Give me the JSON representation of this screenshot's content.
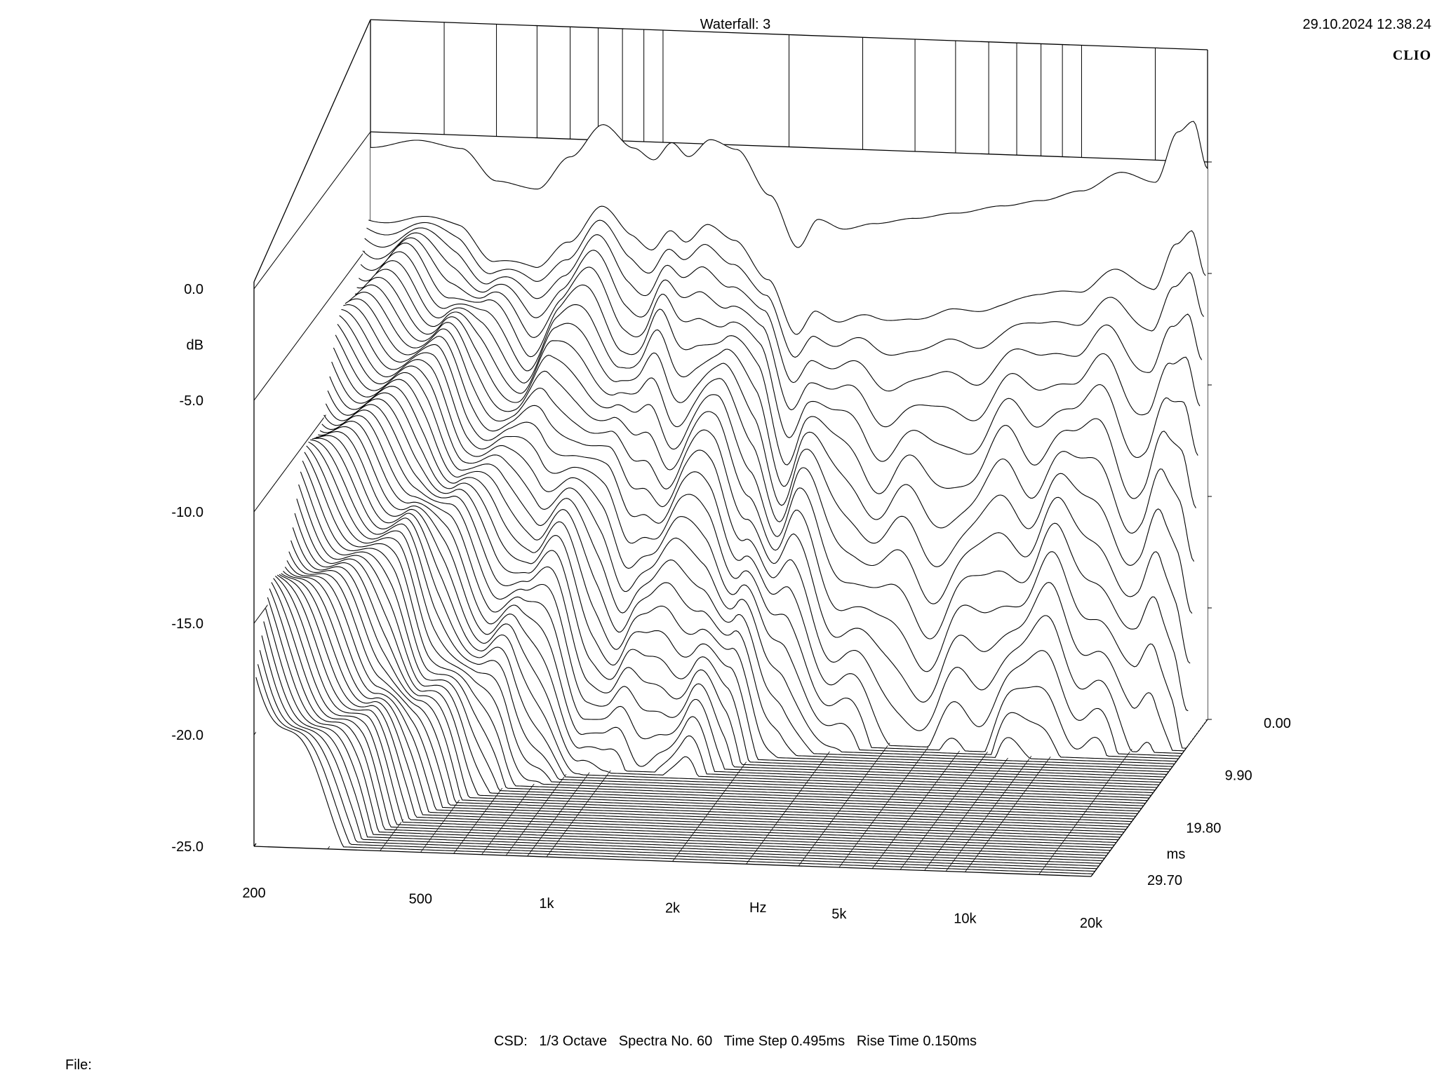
{
  "header": {
    "title": "Waterfall: 3",
    "timestamp": "29.10.2024 12.38.24",
    "logo": "CLIO"
  },
  "footer": {
    "settings": "CSD:   1/3 Octave   Spectra No. 60   Time Step 0.495ms   Rise Time 0.150ms",
    "file_label": "File:"
  },
  "chart_data": {
    "type": "waterfall",
    "title": "Waterfall: 3",
    "x_axis": {
      "label": "Hz",
      "scale": "log",
      "range": [
        200,
        20000
      ],
      "ticks": [
        {
          "value": 200,
          "label": "200"
        },
        {
          "value": 500,
          "label": "500"
        },
        {
          "value": 1000,
          "label": "1k"
        },
        {
          "value": 2000,
          "label": "2k"
        },
        {
          "value": 5000,
          "label": "5k"
        },
        {
          "value": 10000,
          "label": "10k"
        },
        {
          "value": 20000,
          "label": "20k"
        }
      ]
    },
    "y_axis": {
      "label": "dB",
      "range": [
        -25,
        0
      ],
      "ticks": [
        {
          "value": 0,
          "label": "0.0"
        },
        {
          "value": -5,
          "label": "-5.0"
        },
        {
          "value": -10,
          "label": "-10.0"
        },
        {
          "value": -15,
          "label": "-15.0"
        },
        {
          "value": -20,
          "label": "-20.0"
        },
        {
          "value": -25,
          "label": "-25.0"
        }
      ]
    },
    "z_axis": {
      "label": "ms",
      "range": [
        0,
        29.7
      ],
      "ticks": [
        {
          "value": 0,
          "label": "0.00"
        },
        {
          "value": 9.9,
          "label": "9.90"
        },
        {
          "value": 19.8,
          "label": "19.80"
        },
        {
          "value": 29.7,
          "label": "29.70"
        }
      ]
    },
    "spectra_count": 60,
    "time_step_ms": 0.495,
    "rise_time_ms": 0.15,
    "smoothing": "1/3 Octave",
    "first_spectrum_db": [
      {
        "hz": 200,
        "db": -0.7
      },
      {
        "hz": 260,
        "db": -0.3
      },
      {
        "hz": 330,
        "db": -0.6
      },
      {
        "hz": 400,
        "db": -2.0
      },
      {
        "hz": 500,
        "db": -2.3
      },
      {
        "hz": 600,
        "db": -0.8
      },
      {
        "hz": 720,
        "db": 0.7
      },
      {
        "hz": 850,
        "db": -0.3
      },
      {
        "hz": 950,
        "db": -0.8
      },
      {
        "hz": 1050,
        "db": 0.0
      },
      {
        "hz": 1150,
        "db": -0.6
      },
      {
        "hz": 1300,
        "db": 0.2
      },
      {
        "hz": 1500,
        "db": -0.2
      },
      {
        "hz": 1800,
        "db": -2.2
      },
      {
        "hz": 2100,
        "db": -4.5
      },
      {
        "hz": 2350,
        "db": -3.2
      },
      {
        "hz": 2700,
        "db": -3.6
      },
      {
        "hz": 3200,
        "db": -3.3
      },
      {
        "hz": 4000,
        "db": -3.0
      },
      {
        "hz": 5000,
        "db": -2.7
      },
      {
        "hz": 6500,
        "db": -2.3
      },
      {
        "hz": 8000,
        "db": -2.0
      },
      {
        "hz": 10000,
        "db": -1.5
      },
      {
        "hz": 12500,
        "db": -0.6
      },
      {
        "hz": 15000,
        "db": -1.0
      },
      {
        "hz": 17000,
        "db": 1.3
      },
      {
        "hz": 18500,
        "db": 1.8
      },
      {
        "hz": 20000,
        "db": -0.3
      }
    ]
  }
}
